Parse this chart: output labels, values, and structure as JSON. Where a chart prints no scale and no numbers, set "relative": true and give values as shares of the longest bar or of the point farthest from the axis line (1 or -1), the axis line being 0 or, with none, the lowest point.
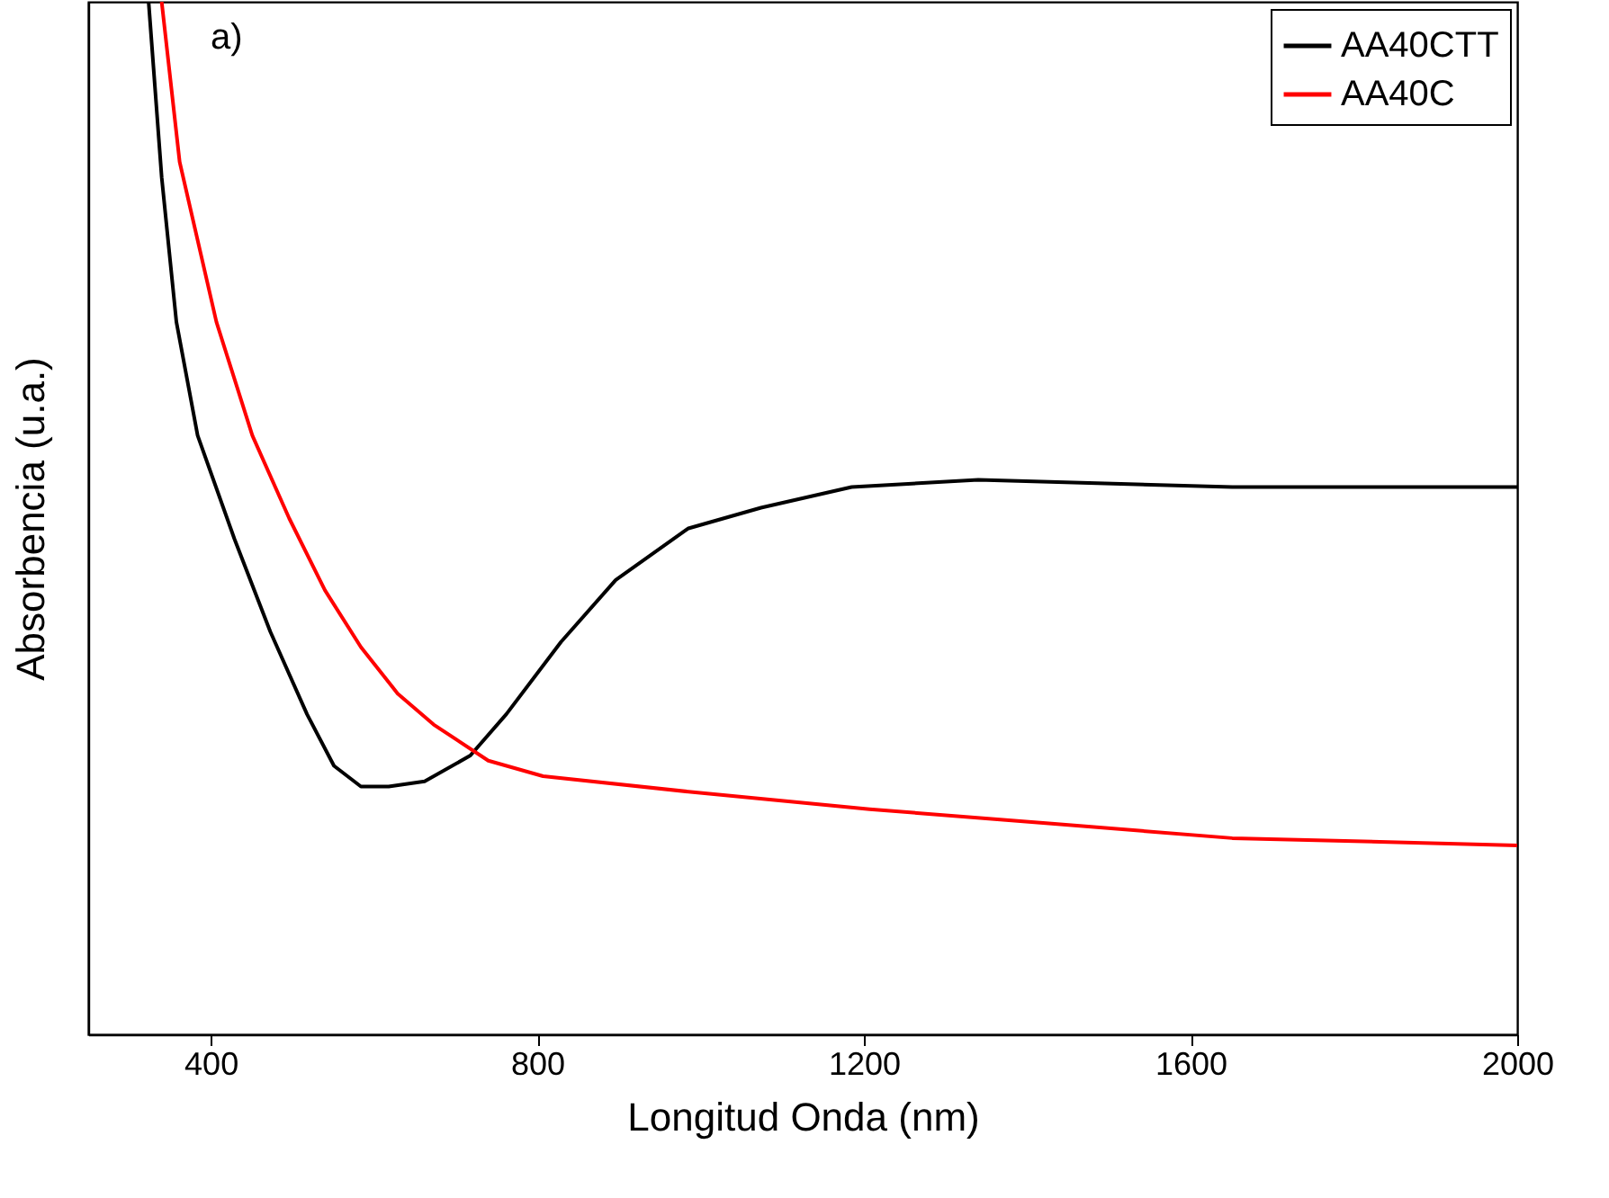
{
  "chart_data": {
    "type": "line",
    "relative": true,
    "xlabel": "Longitud Onda (nm)",
    "ylabel": "Absorbencia (u.a.)",
    "annotations": [
      "a)"
    ],
    "xlim": [
      250,
      2000
    ],
    "xticks": [
      400,
      800,
      1200,
      1600,
      2000
    ],
    "legend": "top right",
    "grid": false,
    "series": [
      {
        "name": "AA40CTT",
        "color": "#000000",
        "x": [
          324,
          340,
          358,
          384,
          429,
          473,
          518,
          551,
          584,
          618,
          662,
          718,
          762,
          829,
          896,
          985,
          1074,
          1185,
          1340,
          1651,
          2000
        ],
        "values": [
          1.0,
          0.83,
          0.69,
          0.58,
          0.48,
          0.39,
          0.31,
          0.26,
          0.24,
          0.24,
          0.245,
          0.27,
          0.31,
          0.38,
          0.44,
          0.49,
          0.51,
          0.53,
          0.537,
          0.53,
          0.53
        ]
      },
      {
        "name": "AA40C",
        "color": "#ff0000",
        "x": [
          340,
          362,
          407,
          451,
          496,
          540,
          584,
          629,
          673,
          740,
          807,
          985,
          1207,
          1430,
          1651,
          2000
        ],
        "values": [
          1.0,
          0.845,
          0.69,
          0.58,
          0.5,
          0.43,
          0.375,
          0.33,
          0.3,
          0.265,
          0.25,
          0.235,
          0.218,
          0.204,
          0.19,
          0.183
        ]
      }
    ]
  }
}
